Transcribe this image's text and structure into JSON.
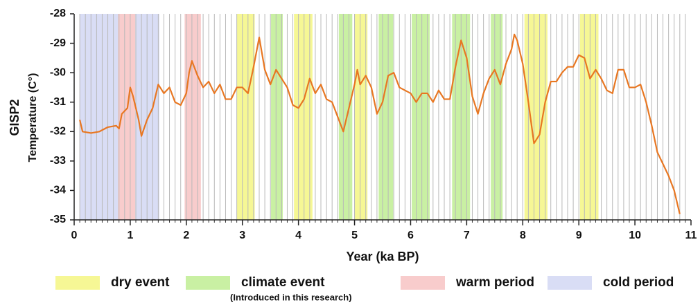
{
  "chart_data": {
    "type": "line",
    "x_label": "Year (ka BP)",
    "y_label": "GISP2",
    "y_sublabel": "Temperature (C°)",
    "xlim": [
      0,
      11
    ],
    "ylim": [
      -35,
      -28
    ],
    "xticks": [
      0,
      1,
      2,
      3,
      4,
      5,
      6,
      7,
      8,
      9,
      10,
      11
    ],
    "yticks": [
      -28,
      -29,
      -30,
      -31,
      -32,
      -33,
      -34,
      -35
    ],
    "xgrid": [
      0.1,
      0.2,
      0.3,
      0.4,
      0.5,
      0.6,
      0.7,
      0.8,
      0.9,
      1.0,
      1.1,
      1.2,
      1.3,
      1.4,
      1.5,
      1.6,
      1.7,
      1.8,
      1.9,
      2.0,
      2.1,
      2.2,
      2.3,
      2.4,
      2.5,
      2.6,
      2.7,
      2.8,
      2.9,
      3.0,
      3.1,
      3.2,
      3.3,
      3.4,
      3.5,
      3.6,
      3.7,
      3.8,
      3.9,
      4.0,
      4.1,
      4.2,
      4.3,
      4.4,
      4.5,
      4.6,
      4.7,
      4.8,
      4.9,
      5.0,
      5.1,
      5.2,
      5.3,
      5.4,
      5.5,
      5.6,
      5.7,
      5.8,
      5.9,
      6.0,
      6.1,
      6.2,
      6.3,
      6.4,
      6.5,
      6.6,
      6.7,
      6.8,
      6.9,
      7.0,
      7.1,
      7.2,
      7.3,
      7.4,
      7.5,
      7.6,
      7.7,
      7.8,
      7.9,
      8.0,
      8.1,
      8.2,
      8.3,
      8.4,
      8.5,
      8.6,
      8.7,
      8.8,
      8.9,
      9.0,
      9.1,
      9.2,
      9.3,
      9.4,
      9.5,
      9.6,
      9.7,
      9.8,
      9.9,
      10.0,
      10.1,
      10.2,
      10.3,
      10.4,
      10.5,
      10.6,
      10.7,
      10.8,
      10.9
    ],
    "color": "#e87722",
    "x": [
      0.1,
      0.15,
      0.3,
      0.45,
      0.6,
      0.75,
      0.8,
      0.85,
      0.95,
      1.0,
      1.05,
      1.1,
      1.15,
      1.2,
      1.3,
      1.4,
      1.5,
      1.6,
      1.7,
      1.8,
      1.9,
      2.0,
      2.05,
      2.1,
      2.2,
      2.3,
      2.4,
      2.5,
      2.6,
      2.7,
      2.8,
      2.9,
      3.0,
      3.1,
      3.2,
      3.3,
      3.4,
      3.5,
      3.6,
      3.7,
      3.8,
      3.9,
      4.0,
      4.1,
      4.2,
      4.3,
      4.4,
      4.5,
      4.6,
      4.7,
      4.8,
      4.9,
      5.0,
      5.05,
      5.1,
      5.2,
      5.3,
      5.4,
      5.5,
      5.6,
      5.7,
      5.8,
      5.9,
      6.0,
      6.1,
      6.2,
      6.3,
      6.4,
      6.5,
      6.6,
      6.7,
      6.8,
      6.9,
      7.0,
      7.1,
      7.2,
      7.3,
      7.4,
      7.5,
      7.6,
      7.7,
      7.8,
      7.85,
      7.9,
      8.0,
      8.1,
      8.2,
      8.3,
      8.4,
      8.5,
      8.6,
      8.7,
      8.8,
      8.9,
      9.0,
      9.1,
      9.2,
      9.3,
      9.4,
      9.5,
      9.6,
      9.7,
      9.8,
      9.9,
      10.0,
      10.1,
      10.2,
      10.3,
      10.4,
      10.5,
      10.6,
      10.7,
      10.8
    ],
    "values": [
      -31.6,
      -32.0,
      -32.05,
      -32.0,
      -31.85,
      -31.8,
      -31.9,
      -31.4,
      -31.2,
      -30.5,
      -30.8,
      -31.2,
      -31.6,
      -32.15,
      -31.6,
      -31.2,
      -30.4,
      -30.7,
      -30.5,
      -31.0,
      -31.1,
      -30.7,
      -30.0,
      -29.6,
      -30.1,
      -30.5,
      -30.3,
      -30.7,
      -30.4,
      -30.9,
      -30.9,
      -30.5,
      -30.5,
      -30.7,
      -29.8,
      -28.8,
      -29.9,
      -30.4,
      -29.9,
      -30.2,
      -30.5,
      -31.1,
      -31.2,
      -30.9,
      -30.2,
      -30.7,
      -30.4,
      -30.9,
      -31.0,
      -31.5,
      -32.0,
      -31.2,
      -30.4,
      -29.9,
      -30.4,
      -30.1,
      -30.5,
      -31.4,
      -31.0,
      -30.1,
      -30.0,
      -30.5,
      -30.6,
      -30.7,
      -31.0,
      -30.7,
      -30.7,
      -31.0,
      -30.6,
      -30.9,
      -30.9,
      -29.8,
      -28.9,
      -29.5,
      -30.8,
      -31.4,
      -30.7,
      -30.2,
      -29.9,
      -30.4,
      -29.7,
      -29.2,
      -28.7,
      -28.9,
      -29.7,
      -31.0,
      -32.4,
      -32.1,
      -31.0,
      -30.3,
      -30.3,
      -30.0,
      -29.8,
      -29.8,
      -29.4,
      -29.5,
      -30.2,
      -29.9,
      -30.2,
      -30.6,
      -30.7,
      -29.9,
      -29.9,
      -30.5,
      -30.5,
      -30.4,
      -31.0,
      -31.8,
      -32.7,
      -33.1,
      -33.5,
      -34.0,
      -34.8
    ],
    "bands": [
      {
        "name": "dry event",
        "color": "#f6f795",
        "ranges": [
          [
            2.9,
            3.22
          ],
          [
            3.92,
            4.25
          ],
          [
            5.0,
            5.23
          ],
          [
            8.03,
            8.44
          ],
          [
            9.02,
            9.35
          ]
        ]
      },
      {
        "name": "climate event",
        "note": "(Introduced in this research)",
        "color": "#c9f0a3",
        "ranges": [
          [
            3.51,
            3.72
          ],
          [
            4.72,
            4.96
          ],
          [
            5.43,
            5.69
          ],
          [
            6.02,
            6.34
          ],
          [
            6.74,
            7.06
          ],
          [
            7.43,
            7.64
          ]
        ]
      },
      {
        "name": "warm period",
        "color": "#f8cccc",
        "ranges": [
          [
            0.78,
            1.09
          ],
          [
            1.97,
            2.26
          ]
        ]
      },
      {
        "name": "cold period",
        "color": "#d9ddf5",
        "ranges": [
          [
            0.1,
            0.78
          ],
          [
            1.09,
            1.52
          ]
        ]
      }
    ]
  }
}
